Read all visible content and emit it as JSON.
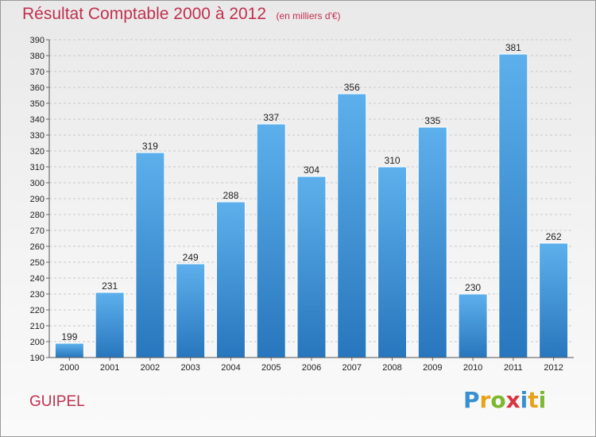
{
  "chart_data": {
    "type": "bar",
    "title": "Résultat Comptable 2000 à 2012",
    "subtitle": "(en milliers d'€)",
    "categories": [
      "2000",
      "2001",
      "2002",
      "2003",
      "2004",
      "2005",
      "2006",
      "2007",
      "2008",
      "2009",
      "2010",
      "2011",
      "2012"
    ],
    "values": [
      199,
      231,
      319,
      249,
      288,
      337,
      304,
      356,
      310,
      335,
      230,
      381,
      262
    ],
    "ylim": [
      190,
      390
    ],
    "ytick_step": 10,
    "xlabel": "",
    "ylabel": "",
    "grid": true,
    "bar_color": "#3f95d8"
  },
  "commune": "GUIPEL",
  "logo": {
    "text": "Proxiti",
    "colors": [
      "#3a8fd0",
      "#e8a21a",
      "#7ab82e",
      "#d8343f",
      "#3a8fd0",
      "#e8a21a",
      "#7ab82e"
    ]
  }
}
